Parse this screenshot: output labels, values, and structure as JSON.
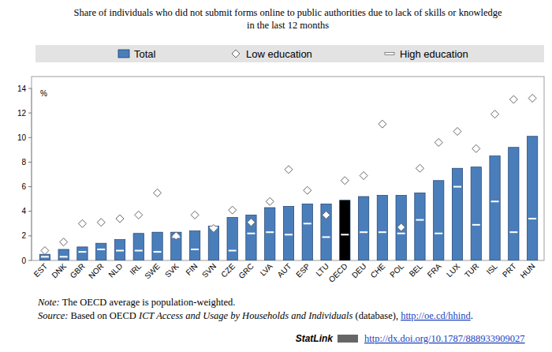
{
  "chart_data": {
    "type": "bar",
    "title": [
      "Share of individuals who did not submit forms online to public authorities due to lack of skills or knowledge",
      "in the last 12 months"
    ],
    "ylabel": "%",
    "categories": [
      "EST",
      "DNK",
      "GBR",
      "NOR",
      "NLD",
      "IRL",
      "SWE",
      "SVK",
      "FIN",
      "SVN",
      "CZE",
      "GRC",
      "LVA",
      "AUT",
      "ESP",
      "LTU",
      "OECD",
      "DEU",
      "CHE",
      "POL",
      "BEL",
      "FRA",
      "LUX",
      "TUR",
      "ISL",
      "PRT",
      "HUN"
    ],
    "series": [
      {
        "name": "Total",
        "type": "bar",
        "color": "#4a7ebb",
        "colors": [
          "#4a7ebb",
          "#4a7ebb",
          "#4a7ebb",
          "#4a7ebb",
          "#4a7ebb",
          "#4a7ebb",
          "#4a7ebb",
          "#4a7ebb",
          "#4a7ebb",
          "#4a7ebb",
          "#4a7ebb",
          "#4a7ebb",
          "#4a7ebb",
          "#4a7ebb",
          "#4a7ebb",
          "#4a7ebb",
          "#000000",
          "#4a7ebb",
          "#4a7ebb",
          "#4a7ebb",
          "#4a7ebb",
          "#4a7ebb",
          "#4a7ebb",
          "#4a7ebb",
          "#4a7ebb",
          "#4a7ebb",
          "#4a7ebb"
        ],
        "values": [
          0.5,
          0.9,
          1.1,
          1.4,
          1.7,
          2.2,
          2.3,
          2.3,
          2.4,
          2.8,
          3.5,
          3.7,
          4.3,
          4.4,
          4.6,
          4.6,
          4.9,
          5.2,
          5.3,
          5.3,
          5.5,
          6.5,
          7.5,
          7.6,
          8.5,
          9.2,
          10.1
        ]
      },
      {
        "name": "Low education",
        "type": "scatter",
        "marker": "diamond",
        "color": "#ffffff",
        "values": [
          0.8,
          1.5,
          3.0,
          3.1,
          3.4,
          3.7,
          5.5,
          2.0,
          3.7,
          2.6,
          4.1,
          3.1,
          4.8,
          7.4,
          5.7,
          3.7,
          6.5,
          6.9,
          11.1,
          2.7,
          7.5,
          9.6,
          10.5,
          9.1,
          11.9,
          13.1,
          13.2
        ]
      },
      {
        "name": "High education",
        "type": "scatter",
        "marker": "dash",
        "color": "#ffffff",
        "values": [
          0.3,
          0.3,
          0.7,
          0.9,
          0.8,
          0.8,
          0.7,
          1.9,
          0.9,
          2.7,
          0.8,
          2.2,
          2.3,
          2.1,
          3.0,
          1.9,
          2.1,
          2.3,
          2.3,
          2.2,
          3.3,
          2.2,
          6.0,
          2.9,
          4.8,
          2.3,
          3.4
        ]
      }
    ],
    "ylim": [
      0,
      14
    ],
    "yticks": [
      0,
      2,
      4,
      6,
      8,
      10,
      12,
      14
    ],
    "grid": false,
    "legend": "top",
    "note": [
      "Note:",
      " The OECD average is population-weighted."
    ],
    "source": [
      "Source:",
      " Based on OECD ",
      "ICT Access and Usage by Households and Individuals",
      " (database), ",
      "http://oe.cd/hhind",
      "."
    ],
    "statlink": [
      "StatLink",
      "http://dx.doi.org/10.1787/888933909027"
    ]
  }
}
